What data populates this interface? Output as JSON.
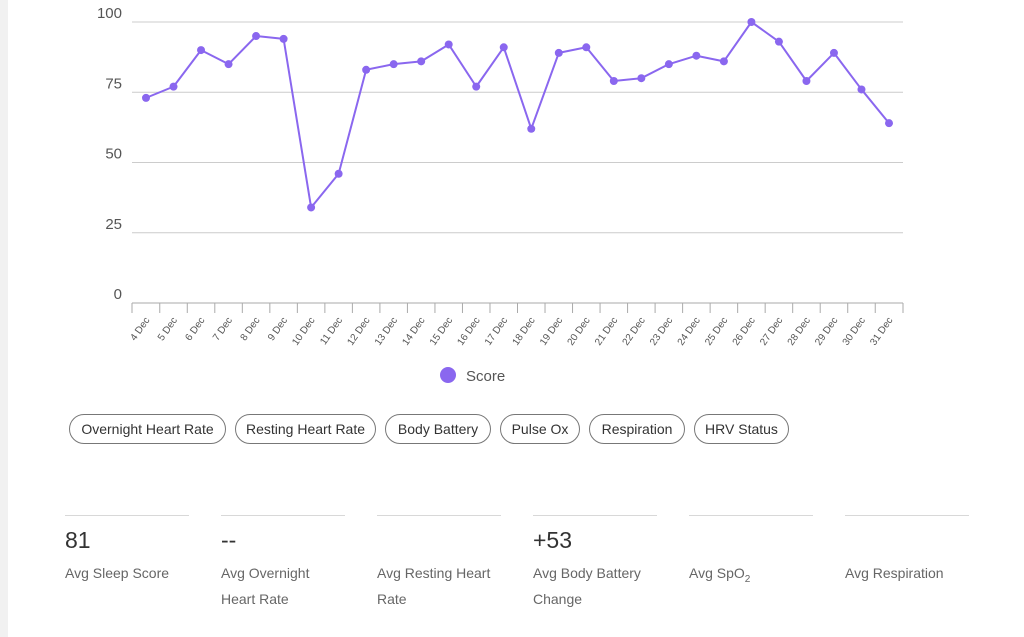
{
  "chart_data": {
    "type": "line",
    "categories": [
      "4 Dec",
      "5 Dec",
      "6 Dec",
      "7 Dec",
      "8 Dec",
      "9 Dec",
      "10 Dec",
      "11 Dec",
      "12 Dec",
      "13 Dec",
      "14 Dec",
      "15 Dec",
      "16 Dec",
      "17 Dec",
      "18 Dec",
      "19 Dec",
      "20 Dec",
      "21 Dec",
      "22 Dec",
      "23 Dec",
      "24 Dec",
      "25 Dec",
      "26 Dec",
      "27 Dec",
      "28 Dec",
      "29 Dec",
      "30 Dec",
      "31 Dec"
    ],
    "series": [
      {
        "name": "Score",
        "values": [
          73,
          77,
          90,
          85,
          95,
          94,
          34,
          46,
          83,
          85,
          86,
          92,
          77,
          91,
          62,
          89,
          91,
          79,
          80,
          85,
          88,
          86,
          100,
          93,
          79,
          89,
          76,
          64
        ],
        "color": "#8a67ef"
      }
    ],
    "yticks": [
      "0",
      "25",
      "50",
      "75",
      "100"
    ],
    "ylim": [
      0,
      100
    ],
    "grid": true,
    "legend_position": "bottom-center",
    "colors": {
      "line": "#8a67ef",
      "grid": "#cccccc",
      "axis": "#aaaaaa"
    }
  },
  "metric_tabs": [
    {
      "label": "Overnight Heart Rate"
    },
    {
      "label": "Resting Heart Rate"
    },
    {
      "label": "Body Battery"
    },
    {
      "label": "Pulse Ox"
    },
    {
      "label": "Respiration"
    },
    {
      "label": "HRV Status"
    }
  ],
  "stats": [
    {
      "value": "81",
      "label": "Avg Sleep Score"
    },
    {
      "value": "--",
      "label": "Avg Overnight Heart Rate"
    },
    {
      "value": "",
      "label": "Avg Resting Heart Rate"
    },
    {
      "value": "+53",
      "label": "Avg Body Battery Change"
    },
    {
      "value": "",
      "label_main": "Avg SpO",
      "label_sub": "2"
    },
    {
      "value": "",
      "label": "Avg Respiration"
    }
  ]
}
